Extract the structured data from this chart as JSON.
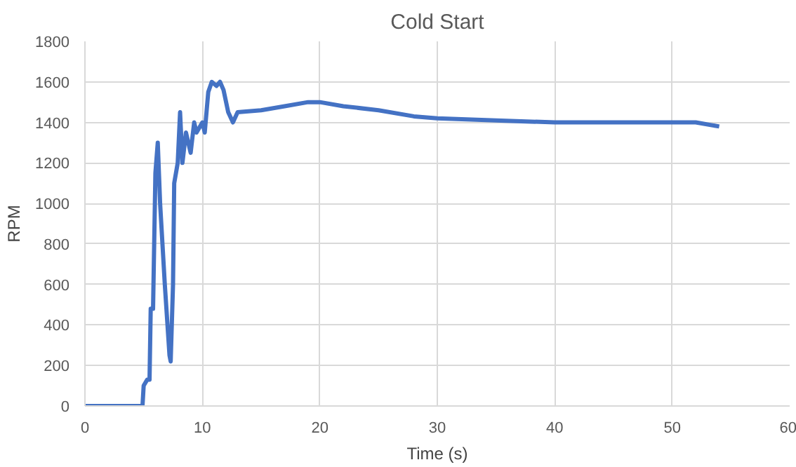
{
  "chart_data": {
    "type": "line",
    "title": "Cold Start",
    "xlabel": "Time (s)",
    "ylabel": "RPM",
    "xlim": [
      0,
      60
    ],
    "ylim": [
      0,
      1800
    ],
    "xticks": [
      0,
      10,
      20,
      30,
      40,
      50,
      60
    ],
    "yticks": [
      0,
      200,
      400,
      600,
      800,
      1000,
      1200,
      1400,
      1600,
      1800
    ],
    "grid": true,
    "series": [
      {
        "color": "#4472c4",
        "x": [
          0,
          4.9,
          5.0,
          5.3,
          5.5,
          5.6,
          5.8,
          6.0,
          6.2,
          6.4,
          6.8,
          7.2,
          7.3,
          7.5,
          7.6,
          7.9,
          8.1,
          8.3,
          8.6,
          9.0,
          9.3,
          9.5,
          10.0,
          10.2,
          10.5,
          10.8,
          11.2,
          11.5,
          11.8,
          12.2,
          12.6,
          13,
          15,
          17,
          19,
          20,
          22,
          25,
          28,
          30,
          35,
          40,
          45,
          50,
          52,
          54
        ],
        "values": [
          0,
          0,
          100,
          130,
          130,
          480,
          480,
          1150,
          1300,
          1000,
          600,
          250,
          220,
          600,
          1100,
          1200,
          1450,
          1200,
          1350,
          1250,
          1400,
          1350,
          1400,
          1350,
          1550,
          1600,
          1580,
          1600,
          1560,
          1450,
          1400,
          1450,
          1460,
          1480,
          1500,
          1500,
          1480,
          1460,
          1430,
          1420,
          1410,
          1400,
          1400,
          1400,
          1400,
          1380
        ]
      }
    ]
  }
}
